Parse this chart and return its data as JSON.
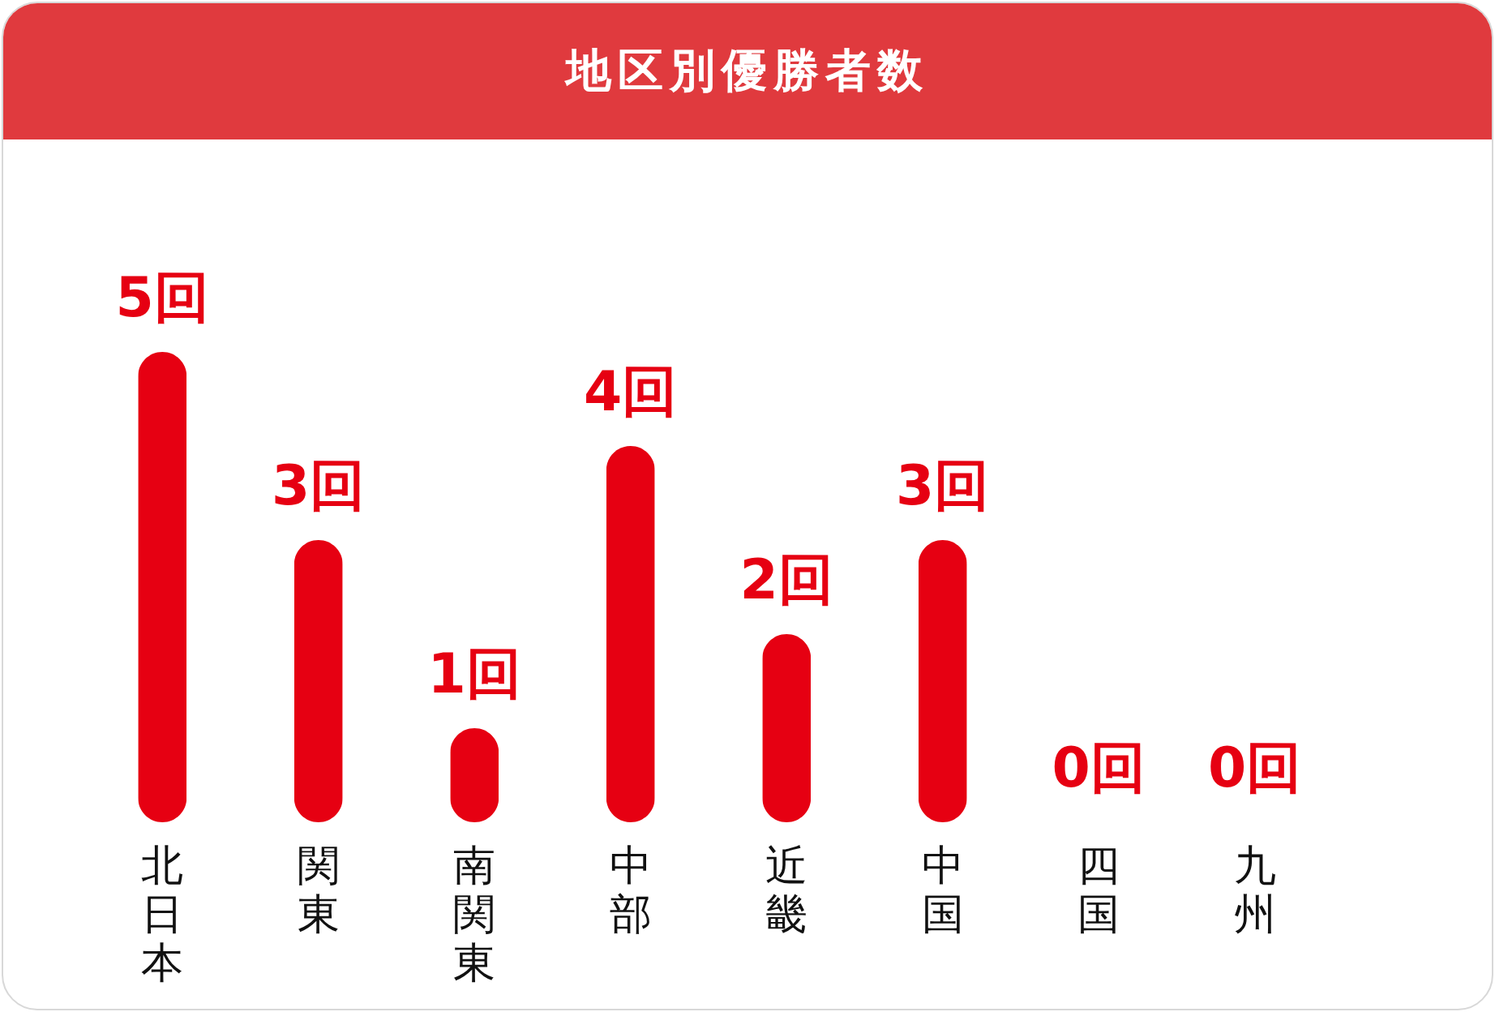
{
  "chart_data": {
    "type": "bar",
    "title": "地区別優勝者数",
    "categories": [
      "北日本",
      "関東",
      "南関東",
      "中部",
      "近畿",
      "中国",
      "四国",
      "九州"
    ],
    "values": [
      5,
      3,
      1,
      4,
      2,
      3,
      0,
      0
    ],
    "value_labels": [
      "5回",
      "3回",
      "1回",
      "4回",
      "2回",
      "3回",
      "0回",
      "0回"
    ],
    "color": "#e60012"
  }
}
